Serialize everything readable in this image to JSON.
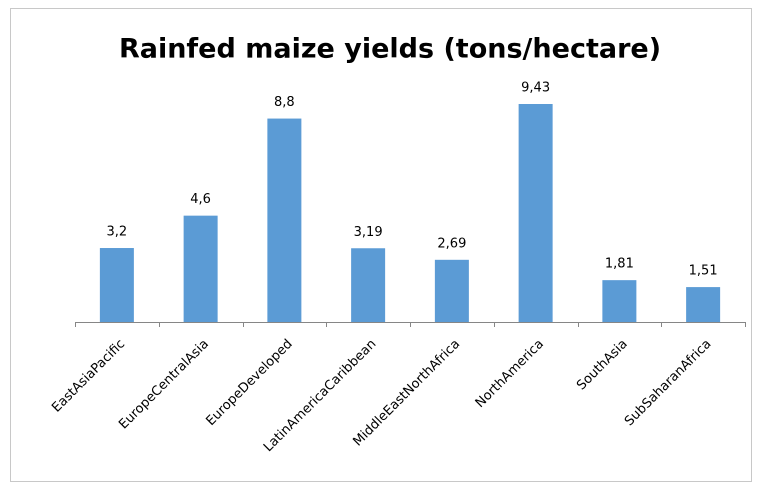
{
  "chart_data": {
    "type": "bar",
    "title": "Rainfed maize yields (tons/hectare)",
    "categories": [
      "EastAsiaPacific",
      "EuropeCentralAsia",
      "EuropeDeveloped",
      "LatinAmericaCaribbean",
      "MiddleEastNorthAfrica",
      "NorthAmerica",
      "SouthAsia",
      "SubSaharanAfrica"
    ],
    "values": [
      3.2,
      4.6,
      8.8,
      3.19,
      2.69,
      9.43,
      1.81,
      1.51
    ],
    "value_labels": [
      "3,2",
      "4,6",
      "8,8",
      "3,19",
      "2,69",
      "9,43",
      "1,81",
      "1,51"
    ],
    "color": "#5b9bd5"
  }
}
